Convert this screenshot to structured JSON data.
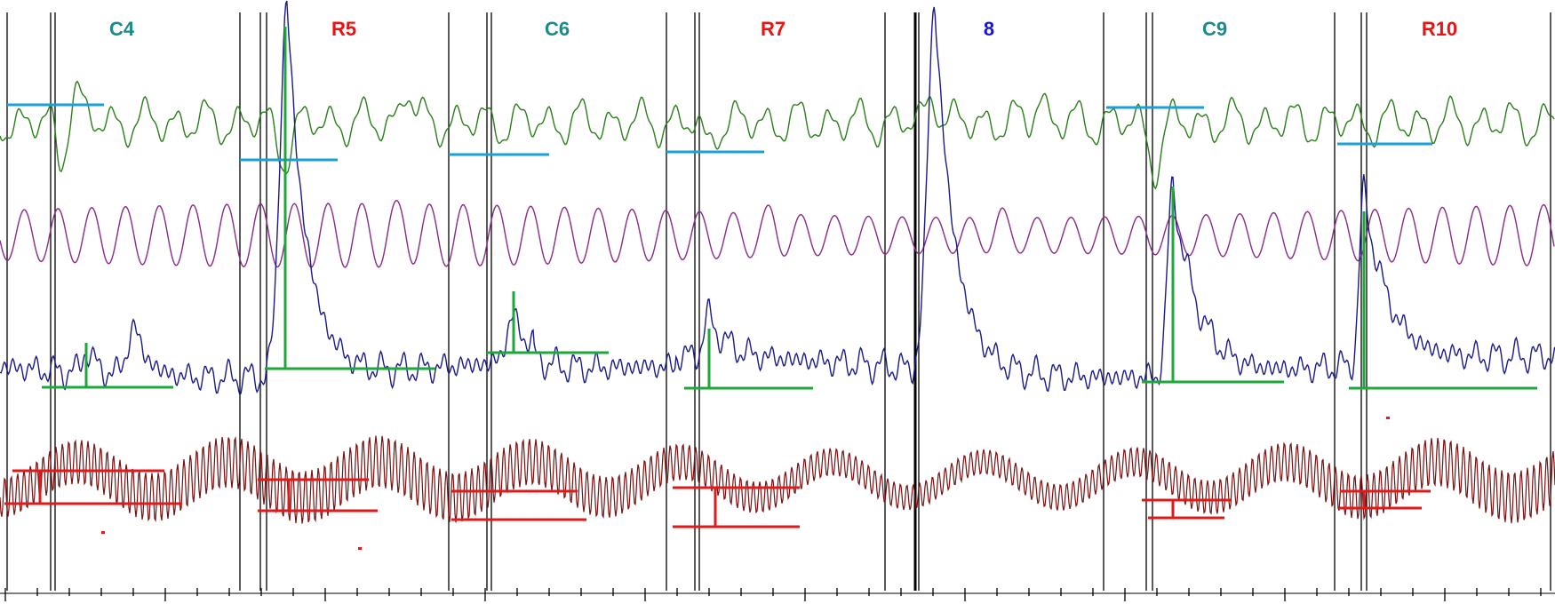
{
  "chart_data": {
    "type": "line",
    "title": "",
    "xlabel": "",
    "ylabel": "",
    "grid": false,
    "legend": "none",
    "segments": [
      {
        "label": "C4",
        "kind": "conditioned",
        "color": "#1a8a8a"
      },
      {
        "label": "R5",
        "kind": "reinforced",
        "color": "#ee1111"
      },
      {
        "label": "C6",
        "kind": "conditioned",
        "color": "#1a8a8a"
      },
      {
        "label": "R7",
        "kind": "reinforced",
        "color": "#ee1111"
      },
      {
        "label": "8",
        "kind": "other",
        "color": "#1515d6"
      },
      {
        "label": "C9",
        "kind": "conditioned",
        "color": "#1a8a8a"
      },
      {
        "label": "R10",
        "kind": "reinforced",
        "color": "#ee1111"
      }
    ],
    "trace_colors": {
      "green": "#2a7f1a",
      "purple": "#8a2a8a",
      "blue": "#1a1a8a",
      "darkred": "#7a1010",
      "baseline_cyan": "#1aa0d8",
      "marker_green": "#1fa83a",
      "marker_red": "#e01a1a",
      "divider": "#000000"
    }
  }
}
